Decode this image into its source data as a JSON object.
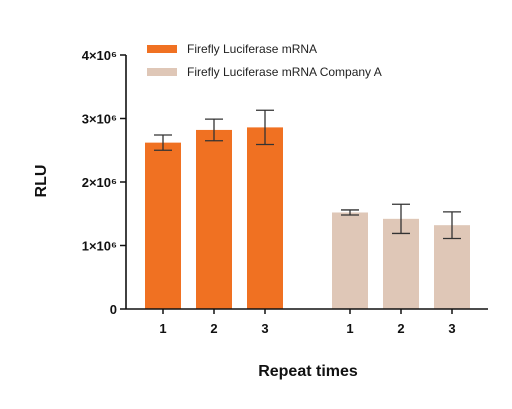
{
  "chart_data": {
    "type": "bar",
    "title": "",
    "xlabel": "Repeat times",
    "ylabel": "RLU",
    "ylim": [
      0,
      4000000
    ],
    "y_ticks": [
      {
        "value": 0,
        "label": "0"
      },
      {
        "value": 1000000,
        "label": "1×10⁶"
      },
      {
        "value": 2000000,
        "label": "2×10⁶"
      },
      {
        "value": 3000000,
        "label": "3×10⁶"
      },
      {
        "value": 4000000,
        "label": "4×10⁶"
      }
    ],
    "series": [
      {
        "name": "Firefly Luciferase mRNA",
        "color": "#f07122",
        "categories": [
          "1",
          "2",
          "3"
        ],
        "values": [
          2620000,
          2820000,
          2860000
        ],
        "error": [
          120000,
          170000,
          270000
        ]
      },
      {
        "name": "Firefly Luciferase mRNA Company A",
        "color": "#dfc7b7",
        "categories": [
          "1",
          "2",
          "3"
        ],
        "values": [
          1520000,
          1420000,
          1320000
        ],
        "error": [
          40000,
          230000,
          210000
        ]
      }
    ],
    "legend_position": "top-right",
    "grid": false
  }
}
